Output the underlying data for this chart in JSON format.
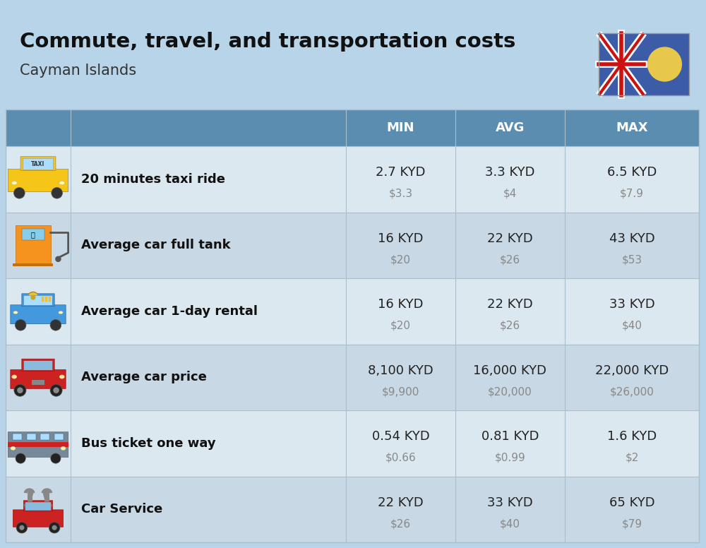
{
  "title": "Commute, travel, and transportation costs",
  "subtitle": "Cayman Islands",
  "background_color": "#b8d4e8",
  "header_color": "#5b8db0",
  "header_text_color": "#ffffff",
  "row_color_light": "#dce8f0",
  "row_color_dark": "#c8d8e4",
  "separator_color": "#aabfcc",
  "col_header_labels": [
    "MIN",
    "AVG",
    "MAX"
  ],
  "rows": [
    {
      "label": "20 minutes taxi ride",
      "min_kyd": "2.7 KYD",
      "min_usd": "$3.3",
      "avg_kyd": "3.3 KYD",
      "avg_usd": "$4",
      "max_kyd": "6.5 KYD",
      "max_usd": "$7.9"
    },
    {
      "label": "Average car full tank",
      "min_kyd": "16 KYD",
      "min_usd": "$20",
      "avg_kyd": "22 KYD",
      "avg_usd": "$26",
      "max_kyd": "43 KYD",
      "max_usd": "$53"
    },
    {
      "label": "Average car 1-day rental",
      "min_kyd": "16 KYD",
      "min_usd": "$20",
      "avg_kyd": "22 KYD",
      "avg_usd": "$26",
      "max_kyd": "33 KYD",
      "max_usd": "$40"
    },
    {
      "label": "Average car price",
      "min_kyd": "8,100 KYD",
      "min_usd": "$9,900",
      "avg_kyd": "16,000 KYD",
      "avg_usd": "$20,000",
      "max_kyd": "22,000 KYD",
      "max_usd": "$26,000"
    },
    {
      "label": "Bus ticket one way",
      "min_kyd": "0.54 KYD",
      "min_usd": "$0.66",
      "avg_kyd": "0.81 KYD",
      "avg_usd": "$0.99",
      "max_kyd": "1.6 KYD",
      "max_usd": "$2"
    },
    {
      "label": "Car Service",
      "min_kyd": "22 KYD",
      "min_usd": "$26",
      "avg_kyd": "33 KYD",
      "avg_usd": "$40",
      "max_kyd": "65 KYD",
      "max_usd": "$79"
    }
  ],
  "kyd_color": "#222222",
  "usd_color": "#888888",
  "label_color": "#111111",
  "title_fontsize": 21,
  "subtitle_fontsize": 15,
  "header_fontsize": 13,
  "label_fontsize": 13,
  "value_fontsize": 13,
  "usd_fontsize": 11
}
